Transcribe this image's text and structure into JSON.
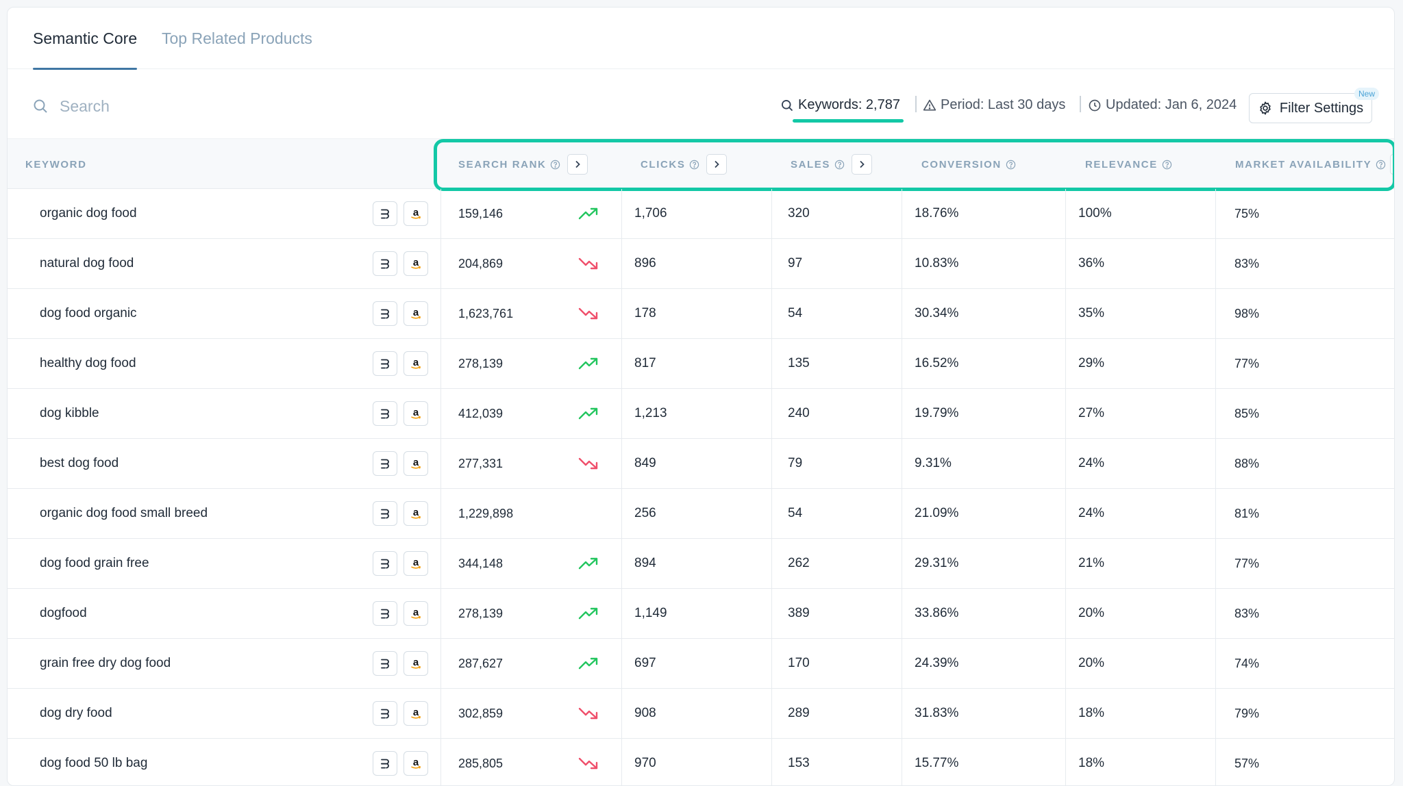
{
  "tabs": [
    {
      "label": "Semantic Core",
      "active": true
    },
    {
      "label": "Top Related Products",
      "active": false
    }
  ],
  "search": {
    "placeholder": "Search",
    "value": ""
  },
  "stats": {
    "keywords": "Keywords: 2,787",
    "period": "Period: Last 30 days",
    "updated": "Updated: Jan 6, 2024"
  },
  "filter": {
    "label": "Filter Settings",
    "badge": "New"
  },
  "columns": {
    "keyword": "KEYWORD",
    "search_rank": "SEARCH RANK",
    "clicks": "CLICKS",
    "sales": "SALES",
    "conversion": "CONVERSION",
    "relevance": "RELEVANCE",
    "market_availability": "MARKET AVAILABILITY"
  },
  "colors": {
    "accent": "#13c8a6",
    "trend_up": "#22c55e",
    "trend_down": "#ef4f6b",
    "tab_active_underline": "#3f76a3"
  },
  "icons": {
    "search": "search-icon",
    "keywords": "search-icon",
    "period": "warning-triangle-icon",
    "updated": "clock-icon",
    "filter": "gear-icon",
    "help": "help-circle-icon",
    "expand": "chevron-right-icon",
    "row_tool_1": "helium-logo-icon",
    "row_tool_2": "amazon-logo-icon"
  },
  "rows": [
    {
      "keyword": "organic dog food",
      "search_rank": "159,146",
      "trend": "up",
      "clicks": "1,706",
      "sales": "320",
      "conversion": "18.76%",
      "relevance": "100%",
      "market_availability": "75%"
    },
    {
      "keyword": "natural dog food",
      "search_rank": "204,869",
      "trend": "down",
      "clicks": "896",
      "sales": "97",
      "conversion": "10.83%",
      "relevance": "36%",
      "market_availability": "83%"
    },
    {
      "keyword": "dog food organic",
      "search_rank": "1,623,761",
      "trend": "down",
      "clicks": "178",
      "sales": "54",
      "conversion": "30.34%",
      "relevance": "35%",
      "market_availability": "98%"
    },
    {
      "keyword": "healthy dog food",
      "search_rank": "278,139",
      "trend": "up",
      "clicks": "817",
      "sales": "135",
      "conversion": "16.52%",
      "relevance": "29%",
      "market_availability": "77%"
    },
    {
      "keyword": "dog kibble",
      "search_rank": "412,039",
      "trend": "up",
      "clicks": "1,213",
      "sales": "240",
      "conversion": "19.79%",
      "relevance": "27%",
      "market_availability": "85%"
    },
    {
      "keyword": "best dog food",
      "search_rank": "277,331",
      "trend": "down",
      "clicks": "849",
      "sales": "79",
      "conversion": "9.31%",
      "relevance": "24%",
      "market_availability": "88%"
    },
    {
      "keyword": "organic dog food small breed",
      "search_rank": "1,229,898",
      "trend": "none",
      "clicks": "256",
      "sales": "54",
      "conversion": "21.09%",
      "relevance": "24%",
      "market_availability": "81%"
    },
    {
      "keyword": "dog food grain free",
      "search_rank": "344,148",
      "trend": "up",
      "clicks": "894",
      "sales": "262",
      "conversion": "29.31%",
      "relevance": "21%",
      "market_availability": "77%"
    },
    {
      "keyword": "dogfood",
      "search_rank": "278,139",
      "trend": "up",
      "clicks": "1,149",
      "sales": "389",
      "conversion": "33.86%",
      "relevance": "20%",
      "market_availability": "83%"
    },
    {
      "keyword": "grain free dry dog food",
      "search_rank": "287,627",
      "trend": "up",
      "clicks": "697",
      "sales": "170",
      "conversion": "24.39%",
      "relevance": "20%",
      "market_availability": "74%"
    },
    {
      "keyword": "dog dry food",
      "search_rank": "302,859",
      "trend": "down",
      "clicks": "908",
      "sales": "289",
      "conversion": "31.83%",
      "relevance": "18%",
      "market_availability": "79%"
    },
    {
      "keyword": "dog food 50 lb bag",
      "search_rank": "285,805",
      "trend": "down",
      "clicks": "970",
      "sales": "153",
      "conversion": "15.77%",
      "relevance": "18%",
      "market_availability": "57%"
    }
  ]
}
